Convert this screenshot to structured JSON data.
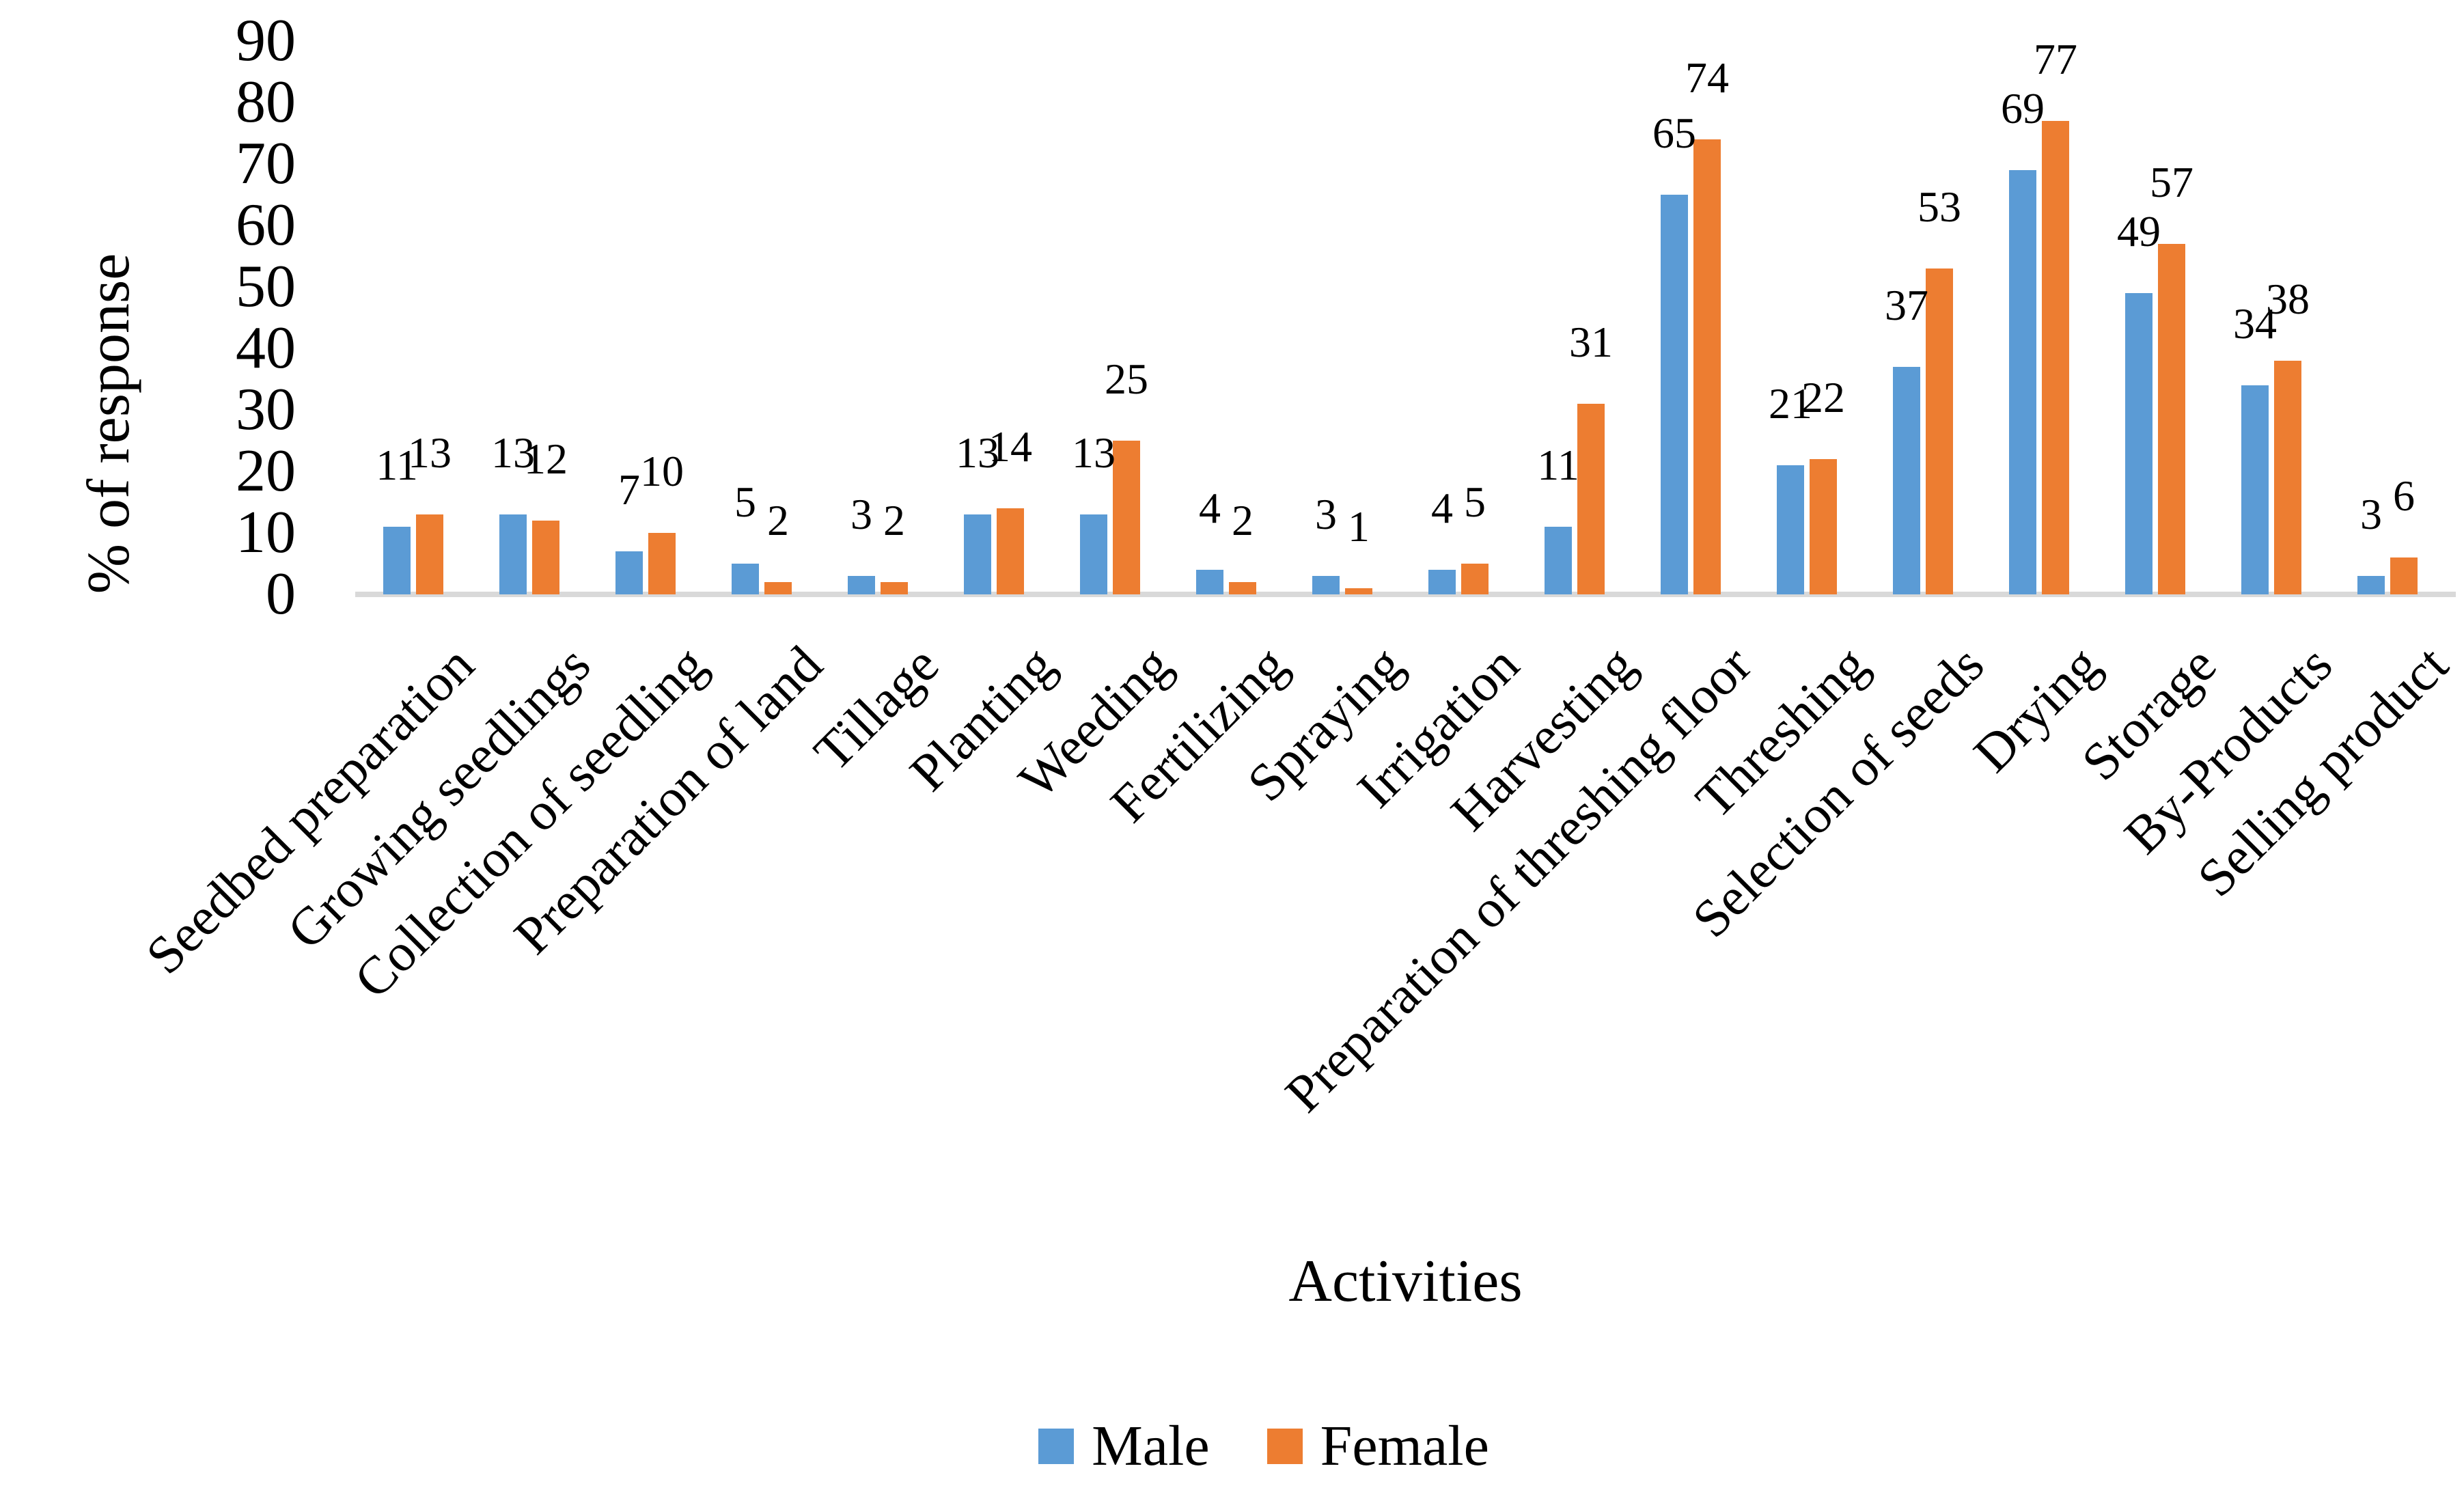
{
  "chart_data": {
    "type": "bar",
    "title": "",
    "xlabel": "Activities",
    "ylabel": "% of response",
    "ylim": [
      0,
      90
    ],
    "ytick_step": 10,
    "yticks": [
      0,
      10,
      20,
      30,
      40,
      50,
      60,
      70,
      80,
      90
    ],
    "grid": false,
    "data_labels": true,
    "legend_position": "bottom",
    "axis_line_color": "#D9D9D9",
    "text_color": "#000000",
    "categories": [
      "Seedbed preparation",
      "Growing seedlings",
      "Collection of seedling",
      "Preparation of land",
      "Tillage",
      "Planting",
      "Weeding",
      "Fertilizing",
      "Spraying",
      "Irrigation",
      "Harvesting",
      "Preparation of threshing floor",
      "Threshing",
      "Selection of seeds",
      "Drying",
      "Storage",
      "By-Products",
      "Selling product"
    ],
    "series": [
      {
        "name": "Male",
        "color": "#5B9BD5",
        "values": [
          11,
          13,
          7,
          5,
          3,
          13,
          13,
          4,
          3,
          4,
          11,
          65,
          21,
          37,
          69,
          49,
          34,
          3
        ]
      },
      {
        "name": "Female",
        "color": "#ED7D31",
        "values": [
          13,
          12,
          10,
          2,
          2,
          14,
          25,
          2,
          1,
          5,
          31,
          74,
          22,
          53,
          77,
          57,
          38,
          6
        ]
      }
    ]
  }
}
